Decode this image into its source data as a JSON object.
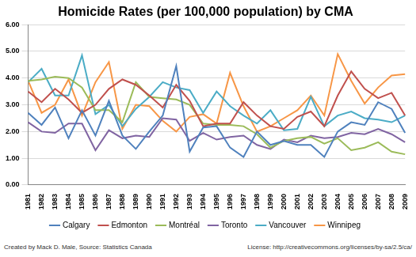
{
  "chart_data": {
    "type": "line",
    "title": "Homicide Rates (per 100,000 population) by CMA",
    "annotations": [
      "Created by Mack D. Male, Source: Statistics Canada",
      "License: http://creativecommons.org/licenses/by-sa/2.5/ca/"
    ],
    "categories": [
      "1981",
      "1982",
      "1983",
      "1984",
      "1985",
      "1986",
      "1987",
      "1988",
      "1989",
      "1990",
      "1991",
      "1992",
      "1993",
      "1994",
      "1995",
      "1996",
      "1997",
      "1998",
      "1999",
      "2000",
      "2001",
      "2002",
      "2003",
      "2004",
      "2005",
      "2006",
      "2007",
      "2008",
      "2009"
    ],
    "series": [
      {
        "name": "Calgary",
        "color": "#4F81BD",
        "values": [
          2.7,
          2.25,
          2.9,
          1.75,
          2.8,
          1.85,
          3.15,
          1.85,
          1.35,
          2.0,
          2.6,
          4.45,
          1.25,
          2.15,
          2.2,
          1.4,
          1.05,
          2.0,
          1.5,
          1.65,
          1.5,
          1.5,
          1.05,
          2.0,
          2.35,
          2.25,
          3.1,
          2.85,
          1.95
        ]
      },
      {
        "name": "Edmonton",
        "color": "#C0504D",
        "values": [
          3.5,
          3.1,
          3.6,
          3.2,
          2.7,
          3.0,
          3.6,
          3.95,
          3.75,
          3.35,
          2.9,
          3.75,
          3.15,
          2.2,
          2.3,
          2.3,
          3.1,
          2.6,
          2.2,
          2.1,
          2.55,
          2.75,
          2.2,
          3.35,
          4.25,
          3.6,
          3.25,
          3.45,
          2.6
        ]
      },
      {
        "name": "Montréal",
        "color": "#9BBB59",
        "values": [
          3.9,
          3.95,
          4.05,
          4.0,
          3.65,
          2.8,
          2.8,
          2.35,
          3.85,
          3.3,
          3.25,
          3.2,
          3.0,
          2.3,
          2.25,
          2.25,
          2.2,
          1.9,
          1.4,
          1.65,
          1.75,
          1.8,
          1.55,
          1.75,
          1.3,
          1.4,
          1.6,
          1.25,
          1.15
        ]
      },
      {
        "name": "Toronto",
        "color": "#8064A2",
        "values": [
          2.35,
          2.0,
          1.95,
          2.3,
          2.3,
          1.3,
          2.05,
          1.75,
          1.85,
          1.8,
          2.5,
          2.45,
          1.65,
          1.95,
          1.7,
          1.8,
          1.85,
          1.5,
          1.35,
          1.7,
          1.6,
          1.85,
          1.75,
          1.8,
          1.95,
          1.9,
          2.1,
          1.9,
          1.6
        ]
      },
      {
        "name": "Vancouver",
        "color": "#4BACC6",
        "values": [
          3.85,
          4.35,
          3.35,
          3.35,
          4.85,
          2.65,
          3.0,
          2.2,
          2.85,
          3.3,
          3.85,
          3.65,
          3.55,
          2.7,
          3.5,
          2.95,
          2.6,
          2.3,
          2.8,
          2.05,
          2.1,
          3.3,
          2.2,
          2.6,
          2.75,
          2.5,
          2.45,
          2.35,
          2.6
        ]
      },
      {
        "name": "Winnipeg",
        "color": "#F79646",
        "values": [
          3.9,
          2.7,
          3.0,
          3.95,
          2.6,
          3.85,
          4.6,
          2.1,
          3.0,
          2.95,
          2.4,
          2.0,
          2.55,
          2.65,
          2.3,
          4.2,
          2.95,
          2.0,
          2.2,
          2.5,
          2.8,
          3.35,
          2.6,
          4.9,
          3.9,
          3.05,
          3.65,
          4.1,
          4.15
        ]
      }
    ],
    "ylim": [
      0,
      6
    ],
    "yticks": [
      {
        "value": 0,
        "label": "0.00"
      },
      {
        "value": 1,
        "label": "1.00"
      },
      {
        "value": 2,
        "label": "2.00"
      },
      {
        "value": 3,
        "label": "3.00"
      },
      {
        "value": 4,
        "label": "4.00"
      },
      {
        "value": 5,
        "label": "5.00"
      },
      {
        "value": 6,
        "label": "6.00"
      }
    ],
    "grid": true,
    "legend": "bottom"
  }
}
